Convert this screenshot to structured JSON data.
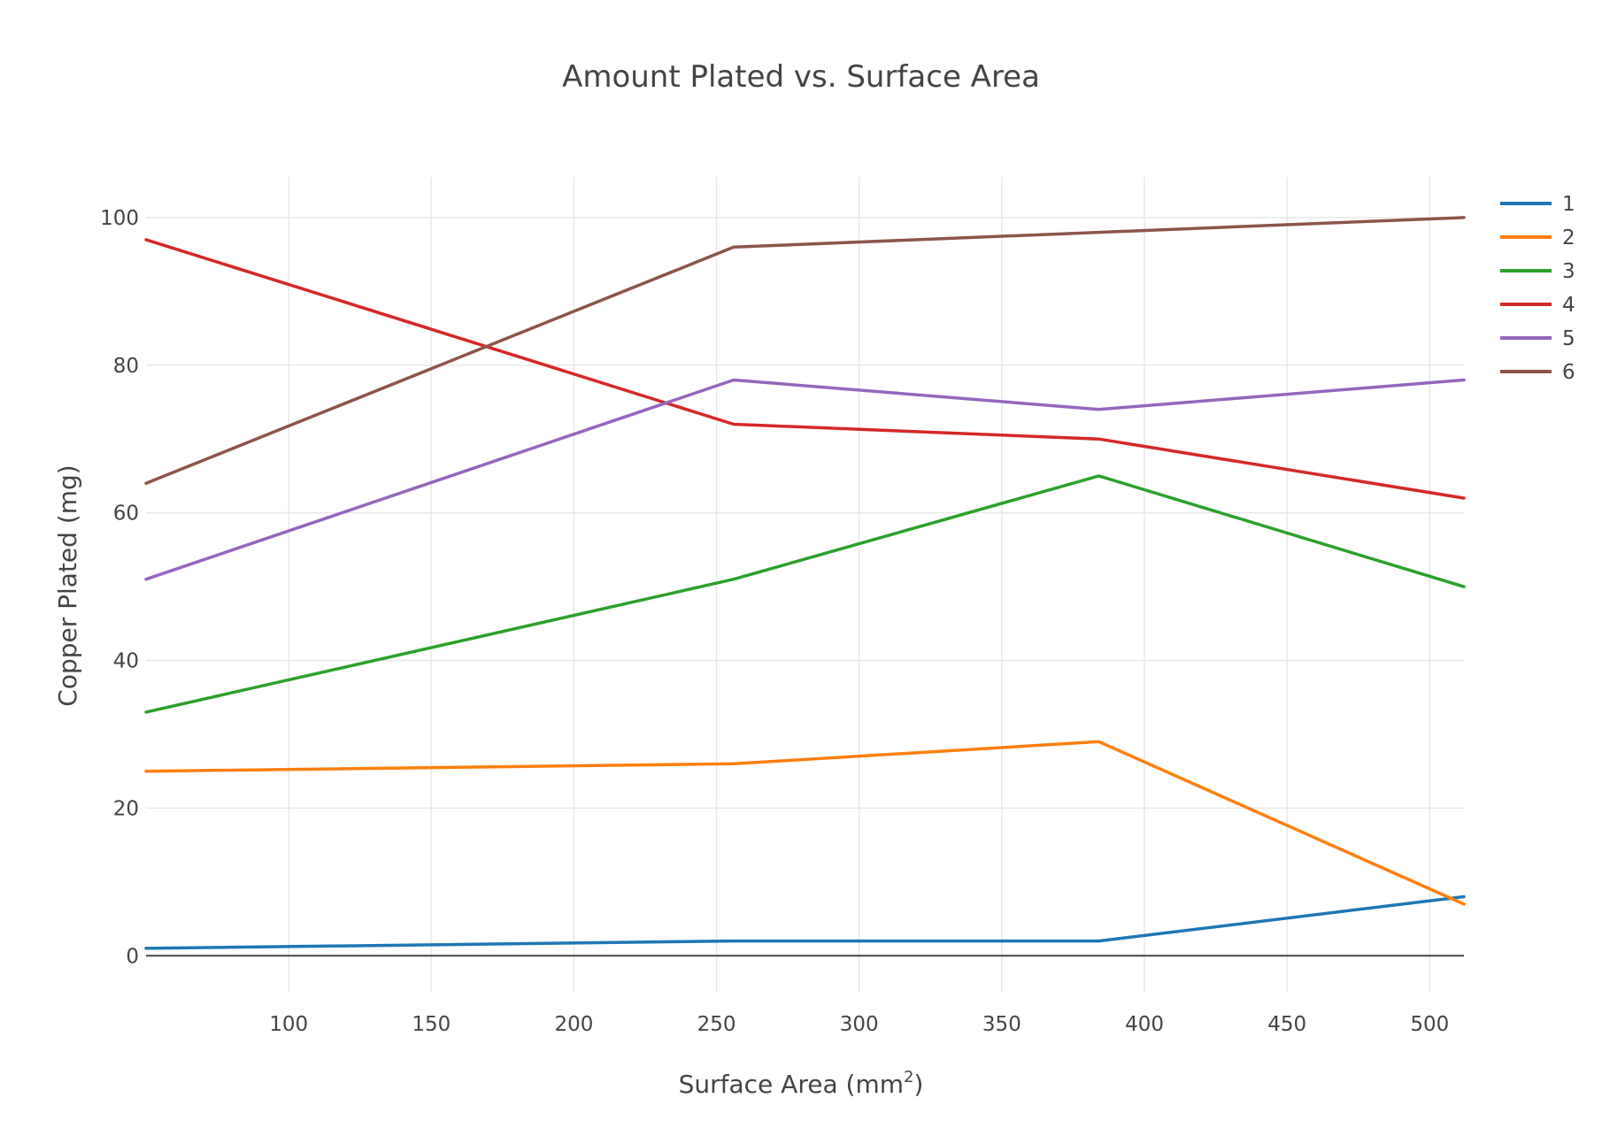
{
  "chart_data": {
    "type": "line",
    "title": "Amount Plated vs. Surface Area",
    "xlabel": "Surface Area (mm",
    "xlabel_sup": "2",
    "xlabel_close": ")",
    "ylabel": "Copper Plated (mg)",
    "xlim": [
      50,
      512
    ],
    "ylim": [
      -5,
      105.5
    ],
    "xticks": [
      100,
      150,
      200,
      250,
      300,
      350,
      400,
      450,
      500
    ],
    "yticks": [
      0,
      20,
      40,
      60,
      80,
      100
    ],
    "grid": true,
    "legend_position": "top-right",
    "x": [
      50,
      256,
      384,
      512
    ],
    "series": [
      {
        "name": "1",
        "color": "#1f77b4",
        "values": [
          1,
          2,
          2,
          8
        ]
      },
      {
        "name": "2",
        "color": "#ff7f0e",
        "values": [
          25,
          26,
          29,
          7
        ]
      },
      {
        "name": "3",
        "color": "#2ca02c",
        "values": [
          33,
          51,
          65,
          50
        ]
      },
      {
        "name": "4",
        "color": "#d62728",
        "values": [
          97,
          72,
          70,
          62
        ]
      },
      {
        "name": "5",
        "color": "#9467bd",
        "values": [
          51,
          78,
          74,
          78
        ]
      },
      {
        "name": "6",
        "color": "#8c564b",
        "values": [
          64,
          96,
          98,
          100
        ]
      }
    ]
  }
}
